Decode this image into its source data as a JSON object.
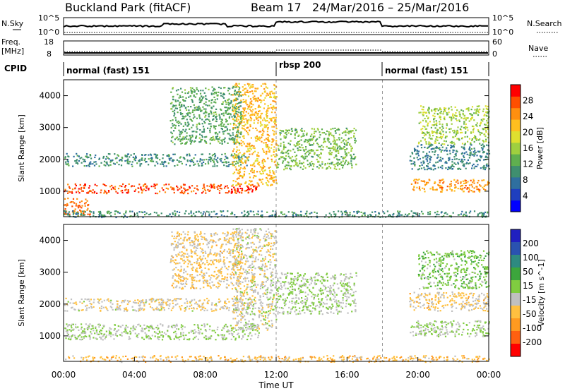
{
  "header": {
    "site": "Buckland Park (fitACF)",
    "beam": "Beam 17",
    "dates": "24/Mar/2016 – 25/Mar/2016"
  },
  "meta_panels": {
    "nsky_label": "N.Sky",
    "nsky_ticks": [
      "10^5",
      "10^0"
    ],
    "nsearch_label": "N.Search",
    "nsearch_ticks": [
      "10^5",
      "10^0"
    ],
    "freq_label_top": "Freq.",
    "freq_label_unit": "[MHz]",
    "freq_ticks": [
      "18",
      "8"
    ],
    "nave_label": "Nave",
    "nave_ticks": [
      "60",
      "0"
    ],
    "cpid_label": "CPID",
    "cpid_segments": [
      {
        "label": "normal (fast) 151",
        "start": 0,
        "end": 12
      },
      {
        "label": "rbsp 200",
        "start": 12,
        "end": 18
      },
      {
        "label": "normal (fast) 151",
        "start": 18,
        "end": 24
      }
    ]
  },
  "chart_data": [
    {
      "type": "heatmap",
      "quantity": "Power",
      "ylabel": "Slant Range [km]",
      "colorbar_label": "Power [dB]",
      "colorbar_ticks": [
        4,
        8,
        12,
        16,
        20,
        24,
        28
      ],
      "colorbar_range": [
        0,
        32
      ],
      "colors": [
        "#0000ff",
        "#1f3fbf",
        "#2f6f9f",
        "#3f8f6f",
        "#5faf4f",
        "#9fcf3f",
        "#dfdf2f",
        "#ffbf1f",
        "#ff8f0f",
        "#ff4f00",
        "#ff0000"
      ],
      "ylim": [
        200,
        4500
      ],
      "y_ticks": [
        1000,
        2000,
        3000,
        4000
      ],
      "x_ticks": [
        "00:00",
        "04:00",
        "08:00",
        "12:00",
        "16:00",
        "20:00",
        "00:00"
      ],
      "xlim": [
        0,
        24
      ],
      "xlabel": "",
      "features": [
        {
          "t0": 0,
          "t1": 11,
          "r0": 950,
          "r1": 1250,
          "value": 28
        },
        {
          "t0": 0,
          "t1": 10.5,
          "r0": 1800,
          "r1": 2200,
          "value": 10
        },
        {
          "t0": 0,
          "t1": 1.5,
          "r0": 250,
          "r1": 800,
          "value": 26
        },
        {
          "t0": 9.5,
          "t1": 12,
          "r0": 1200,
          "r1": 4400,
          "value": 22
        },
        {
          "t0": 12,
          "t1": 16.5,
          "r0": 1700,
          "r1": 3000,
          "value": 14
        },
        {
          "t0": 6,
          "t1": 10,
          "r0": 2500,
          "r1": 4300,
          "value": 12
        },
        {
          "t0": 19.5,
          "t1": 24,
          "r0": 1000,
          "r1": 1400,
          "value": 24
        },
        {
          "t0": 19.5,
          "t1": 24,
          "r0": 1700,
          "r1": 2500,
          "value": 9
        },
        {
          "t0": 20,
          "t1": 24,
          "r0": 2500,
          "r1": 3700,
          "value": 16
        },
        {
          "t0": 0,
          "t1": 24,
          "r0": 200,
          "r1": 400,
          "value": 10
        }
      ]
    },
    {
      "type": "heatmap",
      "quantity": "Velocity",
      "ylabel": "Slant Range [km]",
      "colorbar_label": "Velocity [m s^-1]",
      "colorbar_ticks": [
        200,
        100,
        50,
        15,
        -15,
        -50,
        -100,
        -200
      ],
      "colorbar_range": [
        -250,
        250
      ],
      "colors": [
        "#2020c0",
        "#2a52b0",
        "#2e8a80",
        "#3ca63c",
        "#80cc40",
        "#c0c0c0",
        "#ffc040",
        "#ff9a20",
        "#ff6010",
        "#ff0000"
      ],
      "ylim": [
        200,
        4500
      ],
      "y_ticks": [
        1000,
        2000,
        3000,
        4000
      ],
      "x_ticks": [
        "00:00",
        "04:00",
        "08:00",
        "12:00",
        "16:00",
        "20:00",
        "00:00"
      ],
      "xlim": [
        0,
        24
      ],
      "xlabel": "Time UT",
      "features": [
        {
          "t0": 0,
          "t1": 11,
          "r0": 900,
          "r1": 1400,
          "value": 0
        },
        {
          "t0": 0,
          "t1": 10.5,
          "r0": 1800,
          "r1": 2200,
          "value": -40
        },
        {
          "t0": 9.5,
          "t1": 12,
          "r0": 1200,
          "r1": 4400,
          "value": -30
        },
        {
          "t0": 12,
          "t1": 16.5,
          "r0": 1700,
          "r1": 3000,
          "value": 0
        },
        {
          "t0": 6,
          "t1": 10,
          "r0": 2500,
          "r1": 4300,
          "value": -60
        },
        {
          "t0": 19.5,
          "t1": 24,
          "r0": 1000,
          "r1": 1500,
          "value": 0
        },
        {
          "t0": 19.5,
          "t1": 24,
          "r0": 1800,
          "r1": 2400,
          "value": -60
        },
        {
          "t0": 20,
          "t1": 24,
          "r0": 2500,
          "r1": 3700,
          "value": 30
        },
        {
          "t0": 0,
          "t1": 24,
          "r0": 200,
          "r1": 400,
          "value": -80
        }
      ]
    }
  ]
}
